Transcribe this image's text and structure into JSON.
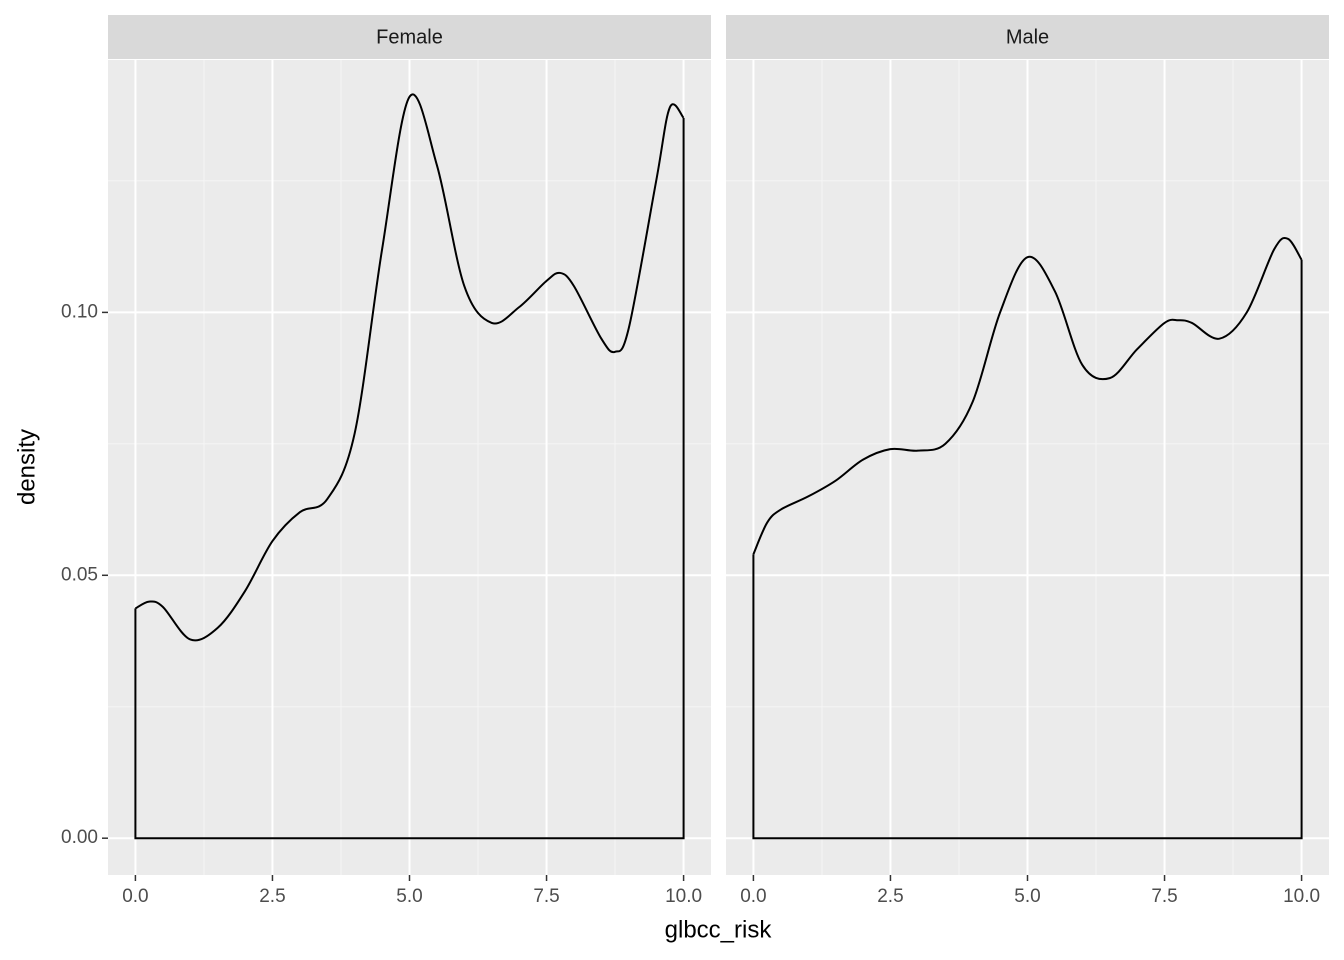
{
  "chart_data": [
    {
      "type": "density",
      "facet": "Female",
      "color": "#000000",
      "grid": true,
      "x": [
        0,
        0.25,
        0.5,
        1.0,
        1.5,
        2.0,
        2.5,
        3.0,
        3.5,
        4.0,
        4.5,
        5.0,
        5.5,
        6.0,
        6.5,
        7.0,
        7.5,
        7.75,
        8.0,
        8.5,
        8.75,
        9.0,
        9.5,
        9.75,
        10.0
      ],
      "values": [
        0.0437,
        0.045,
        0.044,
        0.0378,
        0.04,
        0.047,
        0.0565,
        0.062,
        0.0645,
        0.077,
        0.112,
        0.141,
        0.128,
        0.105,
        0.098,
        0.101,
        0.106,
        0.1075,
        0.105,
        0.095,
        0.0925,
        0.097,
        0.125,
        0.139,
        0.137
      ],
      "xlim": [
        -0.5,
        10.5
      ],
      "ylim": [
        -0.007,
        0.148
      ],
      "xticks": [
        {
          "value": 0,
          "label": "0.0"
        },
        2.5,
        {
          "value": 5,
          "label": "5.0"
        },
        7.5,
        {
          "value": 10,
          "label": "10.0"
        }
      ],
      "yticks": [
        {
          "value": 0,
          "label": "0.00"
        },
        0.05,
        {
          "value": 0.1,
          "label": "0.10"
        }
      ]
    },
    {
      "type": "density",
      "facet": "Male",
      "color": "#000000",
      "grid": true,
      "x": [
        0,
        0.25,
        0.5,
        1.0,
        1.5,
        2.0,
        2.5,
        3.0,
        3.5,
        4.0,
        4.5,
        5.0,
        5.5,
        6.0,
        6.5,
        7.0,
        7.5,
        7.75,
        8.0,
        8.5,
        9.0,
        9.5,
        9.75,
        10.0
      ],
      "values": [
        0.054,
        0.06,
        0.0625,
        0.065,
        0.068,
        0.072,
        0.074,
        0.0737,
        0.075,
        0.083,
        0.1,
        0.1105,
        0.104,
        0.09,
        0.0875,
        0.093,
        0.098,
        0.0985,
        0.098,
        0.095,
        0.1,
        0.112,
        0.114,
        0.11
      ],
      "xlim": [
        -0.5,
        10.5
      ],
      "ylim": [
        -0.007,
        0.148
      ],
      "xticks": [
        {
          "value": 0,
          "label": "0.0"
        },
        2.5,
        {
          "value": 5,
          "label": "5.0"
        },
        7.5,
        {
          "value": 10,
          "label": "10.0"
        }
      ],
      "yticks": [
        0,
        0.05,
        0.1
      ]
    }
  ],
  "x_axis_title": "glbcc_risk",
  "y_axis_title": "density"
}
